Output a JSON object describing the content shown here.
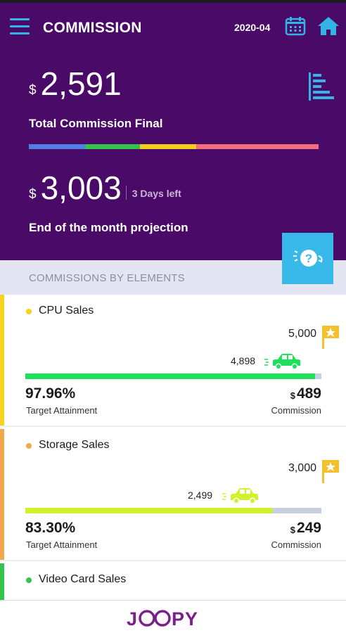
{
  "header": {
    "title": "COMMISSION",
    "period": "2020-04",
    "icons": [
      "menu-icon",
      "calendar-icon",
      "home-icon",
      "bar-chart-icon"
    ]
  },
  "summary": {
    "currency": "$",
    "total": "2,591",
    "total_label": "Total Commission Final",
    "projection": "3,003",
    "days_left": "3 Days left",
    "projection_label": "End of the month projection",
    "bar_colors": [
      "#4f7fe0",
      "#35c24d",
      "#f2cf1c",
      "#f36d7d"
    ]
  },
  "help": {
    "icon": "help-question-icon",
    "color": "#39b9ea"
  },
  "section": {
    "title": "COMMISSIONS BY ELEMENTS"
  },
  "elements": [
    {
      "name": "CPU Sales",
      "accent": "#f7d21e",
      "target": "5,000",
      "current": "4,898",
      "attainment_fraction": 0.9796,
      "bar_color": "#1fe05a",
      "car_color": "#1fe05a",
      "attainment": "97.96%",
      "attainment_label": "Target Attainment",
      "currency": "$",
      "commission": "489",
      "commission_label": "Commission"
    },
    {
      "name": "Storage Sales",
      "accent": "#f2a94e",
      "target": "3,000",
      "current": "2,499",
      "attainment_fraction": 0.833,
      "bar_color": "#cff22a",
      "car_color": "#cff22a",
      "attainment": "83.30%",
      "attainment_label": "Target Attainment",
      "currency": "$",
      "commission": "249",
      "commission_label": "Commission"
    },
    {
      "name": "Video Card Sales",
      "accent": "#35c24d"
    }
  ],
  "footer": {
    "logo": "JOOPY"
  }
}
